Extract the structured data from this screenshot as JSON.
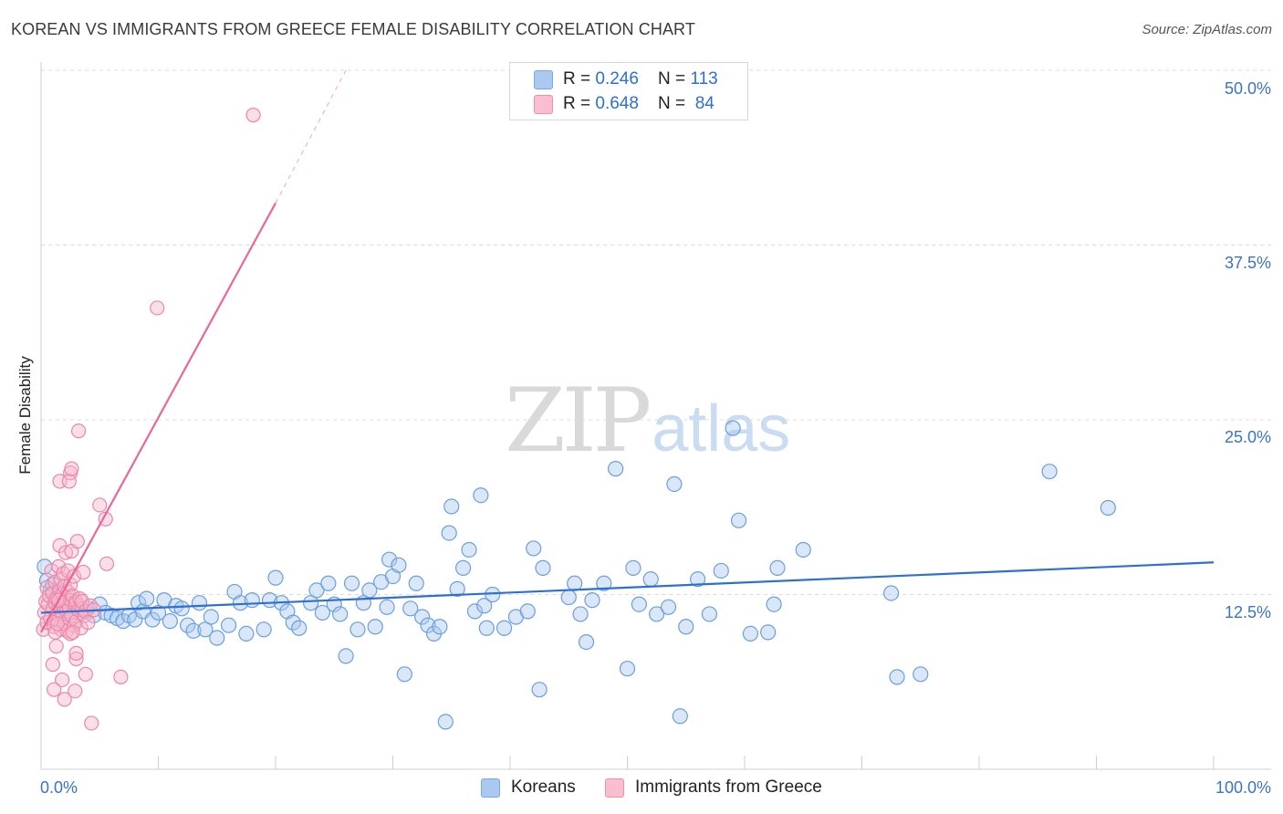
{
  "title": "KOREAN VS IMMIGRANTS FROM GREECE FEMALE DISABILITY CORRELATION CHART",
  "source": "Source: ZipAtlas.com",
  "watermark": {
    "part1": "ZIP",
    "part2": "atlas"
  },
  "legend_top": [
    {
      "r_label": "R = ",
      "r_value": "0.246",
      "n_label": "N = ",
      "n_value": "113",
      "color": "#aac9f0",
      "border": "#7aa8e0"
    },
    {
      "r_label": "R = ",
      "r_value": "0.648",
      "n_label": "N = ",
      "n_value": " 84",
      "color": "#f9bfd1",
      "border": "#ee8fae"
    }
  ],
  "legend_bottom": [
    {
      "label": "Koreans",
      "color": "#aac9f0",
      "border": "#7aa8e0"
    },
    {
      "label": "Immigrants from Greece",
      "color": "#f9bfd1",
      "border": "#ee8fae"
    }
  ],
  "colors": {
    "blue": "#2e6fd1",
    "pink": "#e8679a",
    "blue_fill": "#aac9f0",
    "pink_fill": "#f7b9cd"
  },
  "chart_data": {
    "type": "scatter",
    "title": "KOREAN VS IMMIGRANTS FROM GREECE FEMALE DISABILITY CORRELATION CHART",
    "xlabel": "",
    "ylabel": "Female Disability",
    "xlim": [
      0,
      100
    ],
    "ylim": [
      0,
      50
    ],
    "x_tick_labels": [
      "0.0%",
      "100.0%"
    ],
    "y_ticks": [
      12.5,
      25.0,
      37.5,
      50.0
    ],
    "y_tick_labels": [
      "12.5%",
      "25.0%",
      "37.5%",
      "50.0%"
    ],
    "grid": "horizontal dashed",
    "legend_position": "top-center",
    "series": [
      {
        "name": "Koreans",
        "R": 0.246,
        "N": 113,
        "trend": {
          "x": [
            0,
            100
          ],
          "y": [
            11.2,
            14.8
          ]
        },
        "points": [
          [
            0.3,
            14.5
          ],
          [
            0.5,
            13.5
          ],
          [
            0.8,
            12.8
          ],
          [
            1.0,
            13.2
          ],
          [
            1.2,
            12.0
          ],
          [
            1.5,
            11.8
          ],
          [
            1.8,
            12.2
          ],
          [
            2.0,
            11.5
          ],
          [
            2.5,
            11.0
          ],
          [
            3.0,
            11.8
          ],
          [
            3.5,
            11.2
          ],
          [
            4.0,
            11.5
          ],
          [
            4.5,
            11.0
          ],
          [
            5.0,
            11.8
          ],
          [
            5.5,
            11.2
          ],
          [
            6.0,
            11.0
          ],
          [
            6.5,
            10.8
          ],
          [
            7.0,
            10.6
          ],
          [
            7.5,
            11.0
          ],
          [
            8.0,
            10.7
          ],
          [
            8.3,
            11.9
          ],
          [
            8.7,
            11.3
          ],
          [
            9.0,
            12.2
          ],
          [
            9.5,
            10.7
          ],
          [
            10.0,
            11.2
          ],
          [
            10.5,
            12.1
          ],
          [
            11.0,
            10.6
          ],
          [
            11.5,
            11.7
          ],
          [
            12.0,
            11.5
          ],
          [
            12.5,
            10.3
          ],
          [
            13.0,
            9.9
          ],
          [
            13.5,
            11.9
          ],
          [
            14.0,
            10.0
          ],
          [
            14.5,
            10.9
          ],
          [
            15.0,
            9.4
          ],
          [
            16.0,
            10.3
          ],
          [
            16.5,
            12.7
          ],
          [
            17.0,
            11.9
          ],
          [
            17.5,
            9.7
          ],
          [
            18.0,
            12.1
          ],
          [
            19.0,
            10.0
          ],
          [
            19.5,
            12.1
          ],
          [
            20.0,
            13.7
          ],
          [
            20.5,
            11.9
          ],
          [
            21.0,
            11.3
          ],
          [
            21.5,
            10.5
          ],
          [
            22.0,
            10.1
          ],
          [
            23.0,
            11.9
          ],
          [
            23.5,
            12.8
          ],
          [
            24.0,
            11.2
          ],
          [
            24.5,
            13.3
          ],
          [
            25.0,
            11.8
          ],
          [
            25.5,
            11.1
          ],
          [
            26.0,
            8.1
          ],
          [
            26.5,
            13.3
          ],
          [
            27.0,
            10.0
          ],
          [
            27.5,
            11.9
          ],
          [
            28.0,
            12.8
          ],
          [
            28.5,
            10.2
          ],
          [
            29.0,
            13.4
          ],
          [
            29.5,
            11.6
          ],
          [
            29.7,
            15.0
          ],
          [
            30.0,
            13.8
          ],
          [
            30.5,
            14.6
          ],
          [
            31.0,
            6.8
          ],
          [
            31.5,
            11.5
          ],
          [
            32.0,
            13.3
          ],
          [
            32.5,
            10.9
          ],
          [
            33.0,
            10.3
          ],
          [
            33.5,
            9.7
          ],
          [
            34.0,
            10.2
          ],
          [
            34.5,
            3.4
          ],
          [
            34.8,
            16.9
          ],
          [
            35.0,
            18.8
          ],
          [
            35.5,
            12.9
          ],
          [
            36.0,
            14.4
          ],
          [
            36.5,
            15.7
          ],
          [
            37.0,
            11.3
          ],
          [
            37.5,
            19.6
          ],
          [
            37.8,
            11.7
          ],
          [
            38.5,
            12.5
          ],
          [
            38.0,
            10.1
          ],
          [
            39.5,
            10.1
          ],
          [
            40.5,
            10.9
          ],
          [
            41.5,
            11.3
          ],
          [
            42.0,
            15.8
          ],
          [
            42.5,
            5.7
          ],
          [
            42.8,
            14.4
          ],
          [
            45.0,
            12.3
          ],
          [
            45.5,
            13.3
          ],
          [
            46.0,
            11.1
          ],
          [
            46.5,
            9.1
          ],
          [
            47.0,
            12.1
          ],
          [
            48.0,
            13.3
          ],
          [
            49.0,
            21.5
          ],
          [
            50.0,
            7.2
          ],
          [
            50.5,
            14.4
          ],
          [
            51.0,
            11.8
          ],
          [
            52.0,
            13.6
          ],
          [
            52.5,
            11.1
          ],
          [
            53.5,
            11.6
          ],
          [
            54.0,
            20.4
          ],
          [
            54.5,
            3.8
          ],
          [
            55.0,
            10.2
          ],
          [
            56.0,
            13.6
          ],
          [
            57.0,
            11.1
          ],
          [
            58.0,
            14.2
          ],
          [
            59.0,
            24.4
          ],
          [
            59.5,
            17.8
          ],
          [
            60.5,
            9.7
          ],
          [
            62.0,
            9.8
          ],
          [
            62.5,
            11.8
          ],
          [
            62.8,
            14.4
          ],
          [
            65.0,
            15.7
          ],
          [
            72.5,
            12.6
          ],
          [
            73.0,
            6.6
          ],
          [
            75.0,
            6.8
          ],
          [
            86.0,
            21.3
          ],
          [
            91.0,
            18.7
          ]
        ]
      },
      {
        "name": "Immigrants from Greece",
        "R": 0.648,
        "N": 84,
        "trend": {
          "x": [
            0,
            20
          ],
          "y": [
            9.8,
            40.5
          ]
        },
        "trend_dashed": {
          "x": [
            20,
            26
          ],
          "y": [
            40.5,
            50.0
          ]
        },
        "points": [
          [
            0.2,
            10.0
          ],
          [
            0.3,
            11.2
          ],
          [
            0.4,
            12.0
          ],
          [
            0.5,
            10.5
          ],
          [
            0.5,
            13.0
          ],
          [
            0.6,
            11.8
          ],
          [
            0.7,
            12.4
          ],
          [
            0.8,
            10.8
          ],
          [
            0.9,
            14.2
          ],
          [
            1.0,
            11.5
          ],
          [
            1.0,
            12.6
          ],
          [
            1.1,
            10.2
          ],
          [
            1.2,
            13.4
          ],
          [
            1.2,
            11.9
          ],
          [
            1.3,
            12.2
          ],
          [
            1.4,
            10.6
          ],
          [
            1.5,
            14.5
          ],
          [
            1.5,
            11.4
          ],
          [
            1.6,
            12.8
          ],
          [
            1.6,
            16.0
          ],
          [
            1.7,
            10.0
          ],
          [
            1.7,
            13.6
          ],
          [
            1.8,
            11.1
          ],
          [
            1.8,
            12.5
          ],
          [
            1.9,
            14.0
          ],
          [
            1.9,
            11.7
          ],
          [
            2.0,
            10.4
          ],
          [
            2.0,
            13.1
          ],
          [
            2.1,
            12.0
          ],
          [
            2.1,
            15.5
          ],
          [
            2.2,
            11.3
          ],
          [
            2.2,
            9.9
          ],
          [
            2.3,
            12.7
          ],
          [
            2.3,
            14.2
          ],
          [
            2.4,
            11.6
          ],
          [
            2.4,
            10.8
          ],
          [
            2.5,
            13.2
          ],
          [
            2.5,
            12.1
          ],
          [
            2.6,
            11.0
          ],
          [
            2.6,
            15.6
          ],
          [
            2.7,
            12.4
          ],
          [
            2.8,
            10.3
          ],
          [
            2.8,
            13.8
          ],
          [
            2.9,
            11.8
          ],
          [
            3.0,
            12.0
          ],
          [
            3.0,
            10.6
          ],
          [
            3.1,
            16.3
          ],
          [
            3.2,
            11.4
          ],
          [
            3.2,
            24.2
          ],
          [
            3.3,
            12.2
          ],
          [
            3.4,
            10.1
          ],
          [
            3.5,
            11.5
          ],
          [
            3.5,
            12.0
          ],
          [
            3.6,
            14.1
          ],
          [
            3.7,
            11.0
          ],
          [
            3.8,
            11.3
          ],
          [
            4.0,
            10.5
          ],
          [
            4.2,
            11.7
          ],
          [
            4.5,
            11.4
          ],
          [
            5.0,
            18.9
          ],
          [
            5.5,
            17.9
          ],
          [
            5.6,
            14.7
          ],
          [
            2.0,
            5.0
          ],
          [
            1.3,
            8.8
          ],
          [
            1.8,
            6.4
          ],
          [
            2.5,
            9.7
          ],
          [
            3.0,
            7.9
          ],
          [
            2.9,
            5.6
          ],
          [
            1.1,
            5.7
          ],
          [
            1.0,
            7.5
          ],
          [
            3.8,
            6.8
          ],
          [
            4.3,
            3.3
          ],
          [
            6.8,
            6.6
          ],
          [
            1.6,
            20.6
          ],
          [
            2.5,
            21.2
          ],
          [
            2.4,
            20.6
          ],
          [
            2.6,
            21.5
          ],
          [
            3.0,
            8.3
          ],
          [
            1.5,
            12.1
          ],
          [
            1.2,
            9.8
          ],
          [
            9.9,
            33.0
          ],
          [
            18.1,
            46.8
          ],
          [
            1.4,
            10.4
          ],
          [
            2.7,
            9.8
          ]
        ]
      }
    ]
  }
}
